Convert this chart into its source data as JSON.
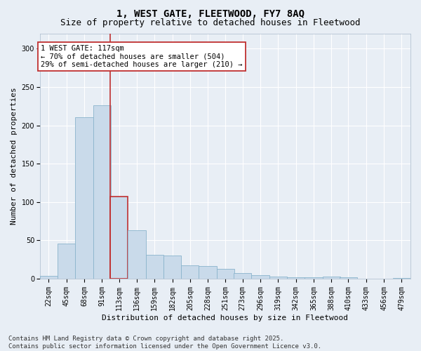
{
  "title": "1, WEST GATE, FLEETWOOD, FY7 8AQ",
  "subtitle": "Size of property relative to detached houses in Fleetwood",
  "xlabel": "Distribution of detached houses by size in Fleetwood",
  "ylabel": "Number of detached properties",
  "bar_color": "#c9daea",
  "bar_edge_color": "#8ab4cc",
  "highlight_bar_edge_color": "#c03030",
  "vline_color": "#c03030",
  "vline_x": 113,
  "bins": [
    22,
    45,
    68,
    91,
    113,
    136,
    159,
    182,
    205,
    228,
    251,
    273,
    296,
    319,
    342,
    365,
    388,
    410,
    433,
    456,
    479
  ],
  "values": [
    4,
    46,
    211,
    226,
    107,
    63,
    31,
    30,
    17,
    16,
    13,
    7,
    5,
    3,
    2,
    2,
    3,
    2,
    0,
    0,
    1
  ],
  "bin_labels": [
    "22sqm",
    "45sqm",
    "68sqm",
    "91sqm",
    "113sqm",
    "136sqm",
    "159sqm",
    "182sqm",
    "205sqm",
    "228sqm",
    "251sqm",
    "273sqm",
    "296sqm",
    "319sqm",
    "342sqm",
    "365sqm",
    "388sqm",
    "410sqm",
    "433sqm",
    "456sqm",
    "479sqm"
  ],
  "ylim": [
    0,
    320
  ],
  "annotation_text": "1 WEST GATE: 117sqm\n← 70% of detached houses are smaller (504)\n29% of semi-detached houses are larger (210) →",
  "annotation_box_color": "#ffffff",
  "annotation_box_edge_color": "#c03030",
  "footer_text": "Contains HM Land Registry data © Crown copyright and database right 2025.\nContains public sector information licensed under the Open Government Licence v3.0.",
  "bg_color": "#e8eef5",
  "title_fontsize": 10,
  "subtitle_fontsize": 9,
  "axis_label_fontsize": 8,
  "tick_fontsize": 7,
  "annotation_fontsize": 7.5,
  "footer_fontsize": 6.5
}
